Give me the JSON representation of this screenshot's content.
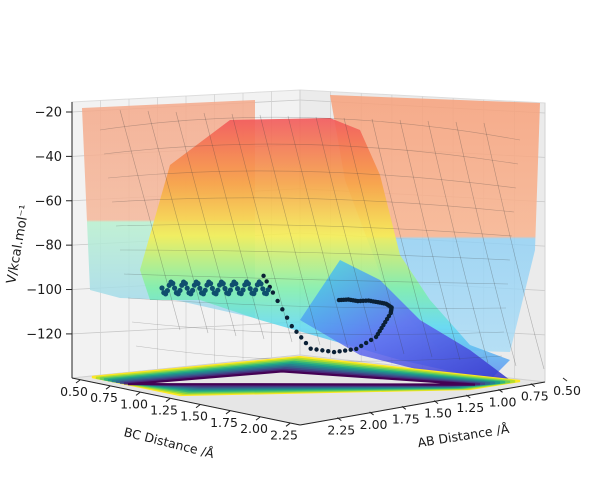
{
  "chart_data": {
    "type": "surface3d",
    "title": "",
    "zlabel": "V/kcal.mol⁻¹",
    "xlabel": "AB Distance /Å",
    "ylabel": "BC Distance /Å",
    "z_ticks": [
      "−20",
      "−40",
      "−60",
      "−80",
      "−100",
      "−120"
    ],
    "z_tick_values": [
      -20,
      -40,
      -60,
      -80,
      -100,
      -120
    ],
    "zlim": [
      -135,
      -18
    ],
    "x_ticks": [
      "2.25",
      "2.00",
      "1.75",
      "1.50",
      "1.25",
      "1.00",
      "0.75",
      "0.50"
    ],
    "x_tick_values": [
      2.25,
      2.0,
      1.75,
      1.5,
      1.25,
      1.0,
      0.75,
      0.5
    ],
    "y_ticks": [
      "0.50",
      "0.75",
      "1.00",
      "1.25",
      "1.50",
      "1.75",
      "2.00",
      "2.25"
    ],
    "y_tick_values": [
      0.5,
      0.75,
      1.0,
      1.25,
      1.5,
      1.75,
      2.0,
      2.25
    ],
    "xlim": [
      0.5,
      2.4
    ],
    "ylim": [
      0.5,
      2.4
    ],
    "grid": true,
    "colormap_surface": "jet",
    "colormap_contour": "viridis",
    "trajectory": {
      "description_points": "approximate trajectory on surface (AB, BC, V)",
      "points": [
        [
          0.95,
          1.9,
          -98
        ],
        [
          0.97,
          1.8,
          -98
        ],
        [
          0.99,
          1.7,
          -99
        ],
        [
          1.0,
          1.6,
          -99
        ],
        [
          1.02,
          1.5,
          -100
        ],
        [
          1.05,
          1.4,
          -101
        ],
        [
          1.1,
          1.3,
          -103
        ],
        [
          1.2,
          1.2,
          -106
        ],
        [
          1.35,
          1.1,
          -112
        ],
        [
          1.5,
          1.0,
          -118
        ],
        [
          1.7,
          0.95,
          -124
        ],
        [
          1.9,
          0.92,
          -126
        ],
        [
          2.1,
          0.9,
          -125
        ],
        [
          2.2,
          0.95,
          -115
        ],
        [
          2.3,
          1.0,
          -100
        ],
        [
          2.35,
          1.05,
          -90
        ]
      ]
    }
  }
}
